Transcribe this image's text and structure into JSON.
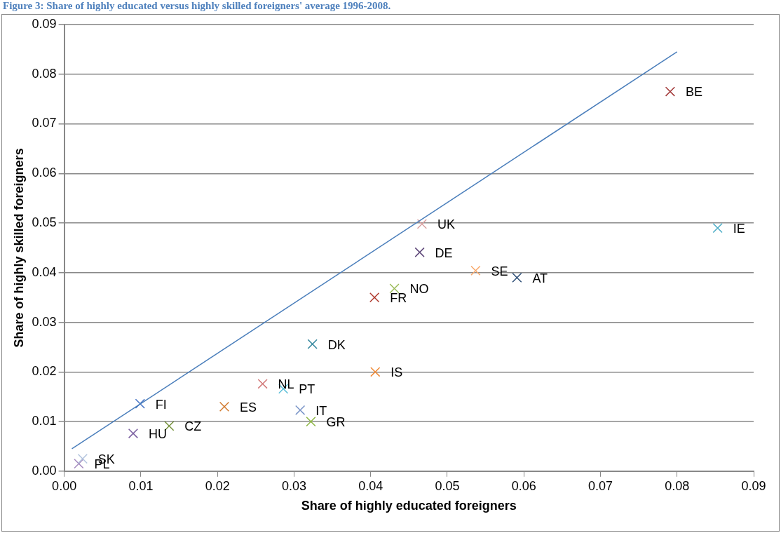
{
  "chart_data": {
    "type": "scatter",
    "title": "Figure 3: Share of highly educated versus highly skilled foreigners' average 1996-2008.",
    "xlabel": "Share of highly educated foreigners",
    "ylabel": "Share of highly skilled foreigners",
    "xlim": [
      0,
      0.09
    ],
    "xticks": [
      {
        "value": 0,
        "label": "0.00"
      },
      {
        "value": 0.01,
        "label": "0.01"
      },
      {
        "value": 0.02,
        "label": "0.02"
      },
      {
        "value": 0.03,
        "label": "0.03"
      },
      {
        "value": 0.04,
        "label": "0.04"
      },
      {
        "value": 0.05,
        "label": "0.05"
      },
      {
        "value": 0.06,
        "label": "0.06"
      },
      {
        "value": 0.07,
        "label": "0.07"
      },
      {
        "value": 0.08,
        "label": "0.08"
      },
      {
        "value": 0.09,
        "label": "0.09"
      }
    ],
    "ylim": [
      0,
      0.09
    ],
    "yticks": [
      {
        "value": 0,
        "label": "0.00"
      },
      {
        "value": 0.01,
        "label": "0.01"
      },
      {
        "value": 0.02,
        "label": "0.02"
      },
      {
        "value": 0.03,
        "label": "0.03"
      },
      {
        "value": 0.04,
        "label": "0.04"
      },
      {
        "value": 0.05,
        "label": "0.05"
      },
      {
        "value": 0.06,
        "label": "0.06"
      },
      {
        "value": 0.07,
        "label": "0.07"
      },
      {
        "value": 0.08,
        "label": "0.08"
      },
      {
        "value": 0.09,
        "label": "0.09"
      }
    ],
    "grid": "y",
    "legend": false,
    "series": [
      {
        "type": "line",
        "color": "#4a7ebb",
        "marker": "none",
        "line_style": "solid",
        "x": [
          0.001,
          0.08
        ],
        "values": [
          0.0045,
          0.0845
        ]
      },
      {
        "name": "BE",
        "color": "#a33a3a",
        "marker": "cross",
        "x": [
          0.0791
        ],
        "values": [
          0.0765
        ]
      },
      {
        "name": "IE",
        "color": "#4bacc6",
        "marker": "cross",
        "x": [
          0.0853
        ],
        "values": [
          0.049
        ]
      },
      {
        "name": "UK",
        "color": "#d9a0a0",
        "marker": "cross",
        "x": [
          0.0467
        ],
        "values": [
          0.0498
        ]
      },
      {
        "name": "DE",
        "color": "#604a7b",
        "marker": "cross",
        "x": [
          0.0464
        ],
        "values": [
          0.0441
        ]
      },
      {
        "name": "SE",
        "color": "#f9a86a",
        "marker": "cross",
        "x": [
          0.0537
        ],
        "values": [
          0.0404
        ]
      },
      {
        "name": "AT",
        "color": "#2c4d75",
        "marker": "cross",
        "x": [
          0.0591
        ],
        "values": [
          0.039
        ]
      },
      {
        "name": "NO",
        "color": "#9bbb59",
        "marker": "cross",
        "x": [
          0.0431
        ],
        "values": [
          0.0368
        ]
      },
      {
        "name": "FR",
        "color": "#b03a2e",
        "marker": "cross",
        "x": [
          0.0405
        ],
        "values": [
          0.035
        ]
      },
      {
        "name": "DK",
        "color": "#31859c",
        "marker": "cross",
        "x": [
          0.0324
        ],
        "values": [
          0.0256
        ]
      },
      {
        "name": "IS",
        "color": "#f08c3a",
        "marker": "cross",
        "x": [
          0.0406
        ],
        "values": [
          0.02
        ]
      },
      {
        "name": "NL",
        "color": "#d37c7c",
        "marker": "cross",
        "x": [
          0.0259
        ],
        "values": [
          0.0176
        ]
      },
      {
        "name": "PT",
        "color": "#5dbfd8",
        "marker": "cross",
        "x": [
          0.0286
        ],
        "values": [
          0.0166
        ]
      },
      {
        "name": "IT",
        "color": "#7d97c9",
        "marker": "cross",
        "x": [
          0.0308
        ],
        "values": [
          0.0123
        ]
      },
      {
        "name": "GR",
        "color": "#8db543",
        "marker": "cross",
        "x": [
          0.0322
        ],
        "values": [
          0.01
        ]
      },
      {
        "name": "ES",
        "color": "#d27a2e",
        "marker": "cross",
        "x": [
          0.0209
        ],
        "values": [
          0.013
        ]
      },
      {
        "name": "FI",
        "color": "#4472c4",
        "marker": "cross",
        "x": [
          0.0099
        ],
        "values": [
          0.0136
        ]
      },
      {
        "name": "CZ",
        "color": "#76923c",
        "marker": "cross",
        "x": [
          0.0137
        ],
        "values": [
          0.0091
        ]
      },
      {
        "name": "HU",
        "color": "#7a5ea0",
        "marker": "cross",
        "x": [
          0.009
        ],
        "values": [
          0.0076
        ]
      },
      {
        "name": "SK",
        "color": "#b3c4de",
        "marker": "cross",
        "x": [
          0.0024
        ],
        "values": [
          0.0025
        ]
      },
      {
        "name": "PL",
        "color": "#a58bbf",
        "marker": "cross",
        "x": [
          0.0019
        ],
        "values": [
          0.0015
        ]
      }
    ]
  }
}
